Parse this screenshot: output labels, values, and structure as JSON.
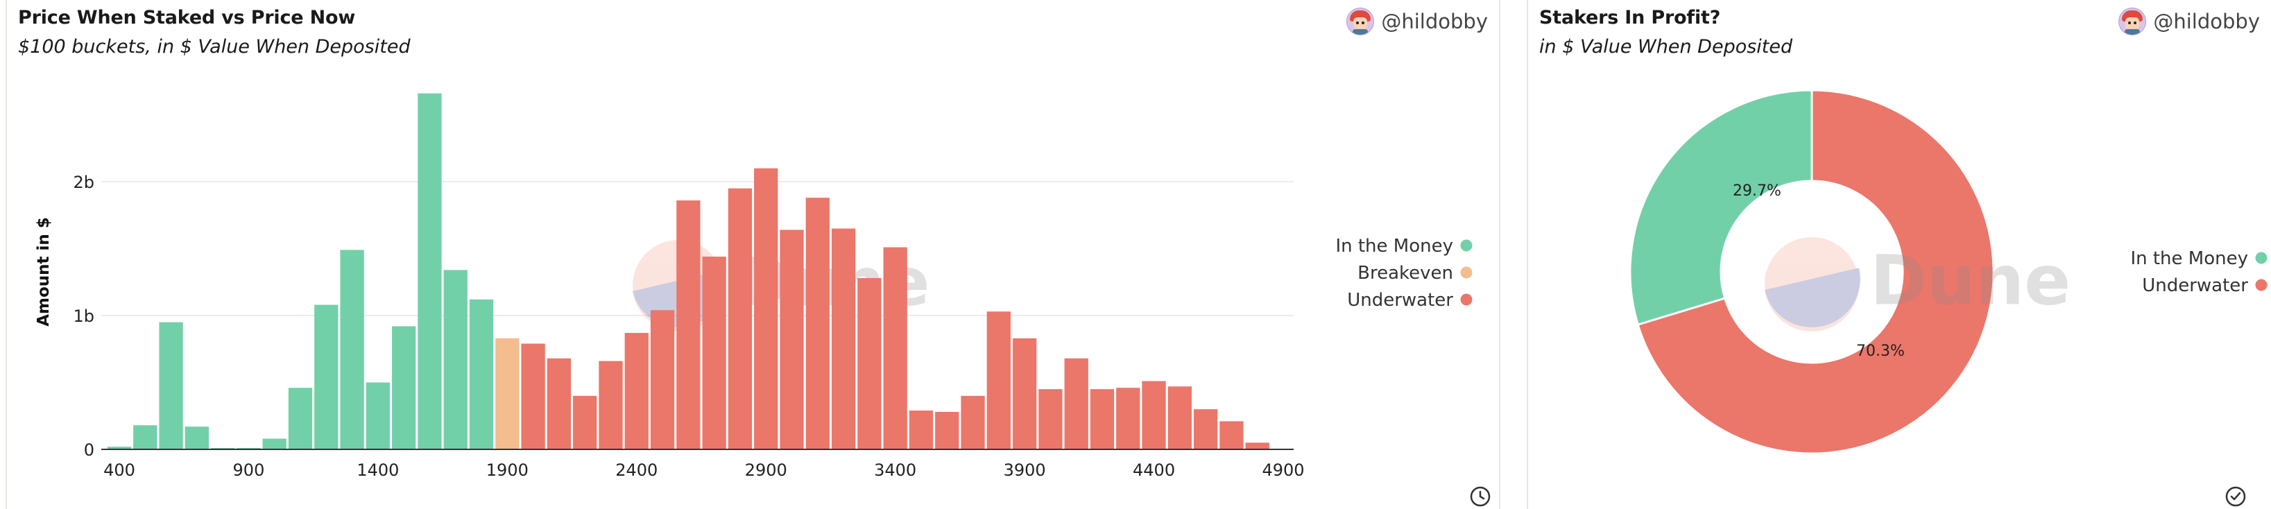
{
  "colors": {
    "in_the_money": "#72d0a9",
    "breakeven": "#f4bd8d",
    "underwater": "#eb766a",
    "grid": "#ececec",
    "axis_text": "#222222"
  },
  "left_panel": {
    "title": "Price When Staked vs Price Now",
    "subtitle": "$100 buckets, in $ Value When Deposited",
    "author": "@hildobby",
    "footer_icon": "clock-icon",
    "watermark": "Dune"
  },
  "right_panel": {
    "title": "Stakers In Profit?",
    "subtitle": "in $ Value When Deposited",
    "author": "@hildobby",
    "footer_icon": "check-circle-icon",
    "watermark": "Dune"
  },
  "chart_data": [
    {
      "type": "bar",
      "title": "Price When Staked vs Price Now",
      "subtitle": "$100 buckets, in $ Value When Deposited",
      "xlabel": "",
      "ylabel": "Amount in $",
      "ylim": [
        0,
        2700000000
      ],
      "x_ticks": [
        400,
        900,
        1400,
        1900,
        2400,
        2900,
        3400,
        3900,
        4400,
        4900
      ],
      "y_ticks": [
        {
          "value": 0,
          "label": "0"
        },
        {
          "value": 1000000000,
          "label": "1b"
        },
        {
          "value": 2000000000,
          "label": "2b"
        }
      ],
      "grid": true,
      "legend_position": "right",
      "series": [
        {
          "name": "In the Money",
          "color": "#72d0a9",
          "x": [
            400,
            500,
            600,
            700,
            800,
            900,
            1000,
            1100,
            1200,
            1300,
            1400,
            1500,
            1600,
            1700,
            1800
          ],
          "values": [
            20000000,
            180000000,
            950000000,
            170000000,
            10000000,
            5000000,
            80000000,
            460000000,
            1080000000,
            1490000000,
            500000000,
            920000000,
            2660000000,
            1340000000,
            1120000000
          ]
        },
        {
          "name": "Breakeven",
          "color": "#f4bd8d",
          "x": [
            1900
          ],
          "values": [
            830000000
          ]
        },
        {
          "name": "Underwater",
          "color": "#eb766a",
          "x": [
            2000,
            2100,
            2200,
            2300,
            2400,
            2500,
            2600,
            2700,
            2800,
            2900,
            3000,
            3100,
            3200,
            3300,
            3400,
            3500,
            3600,
            3700,
            3800,
            3900,
            4000,
            4100,
            4200,
            4300,
            4400,
            4500,
            4600,
            4700,
            4800
          ],
          "values": [
            790000000,
            680000000,
            400000000,
            660000000,
            870000000,
            1040000000,
            1860000000,
            1440000000,
            1950000000,
            2100000000,
            1640000000,
            1880000000,
            1650000000,
            1280000000,
            1510000000,
            290000000,
            280000000,
            400000000,
            1030000000,
            830000000,
            450000000,
            680000000,
            450000000,
            460000000,
            510000000,
            470000000,
            300000000,
            210000000,
            50000000
          ]
        }
      ]
    },
    {
      "type": "pie",
      "title": "Stakers In Profit?",
      "subtitle": "in $ Value When Deposited",
      "donut": true,
      "legend_position": "right",
      "slices": [
        {
          "label": "In the Money",
          "value": 29.7,
          "display": "29.7%",
          "color": "#72d0a9"
        },
        {
          "label": "Underwater",
          "value": 70.3,
          "display": "70.3%",
          "color": "#eb766a"
        }
      ]
    }
  ]
}
